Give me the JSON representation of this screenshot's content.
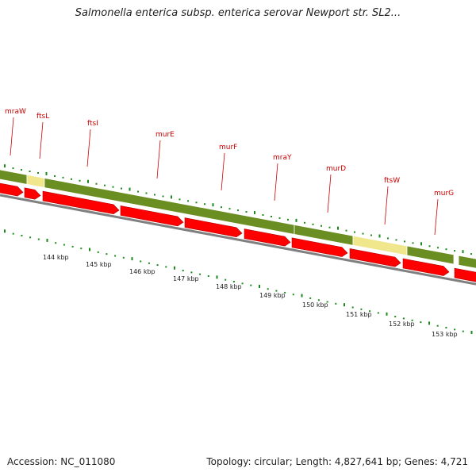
{
  "title": "Salmonella enterica subsp. enterica serovar Newport str. SL2...",
  "footer": {
    "accession": "Accession: NC_011080",
    "summary": "Topology: circular; Length: 4,827,641 bp; Genes: 4,721"
  },
  "colors": {
    "gene_label": "#cc0000",
    "gene_arrow": "#ff0000",
    "olive_segment": "#6b8e23",
    "pale_segment": "#f0e68c",
    "backbone": "#808080",
    "tick": "#1a8a1a"
  },
  "genes": [
    "mraW",
    "ftsL",
    "ftsI",
    "murE",
    "murF",
    "mraY",
    "murD",
    "ftsW",
    "murG"
  ],
  "kbp_labels": [
    "144 kbp",
    "145 kbp",
    "146 kbp",
    "147 kbp",
    "148 kbp",
    "149 kbp",
    "150 kbp",
    "151 kbp",
    "152 kbp",
    "153 kbp"
  ]
}
